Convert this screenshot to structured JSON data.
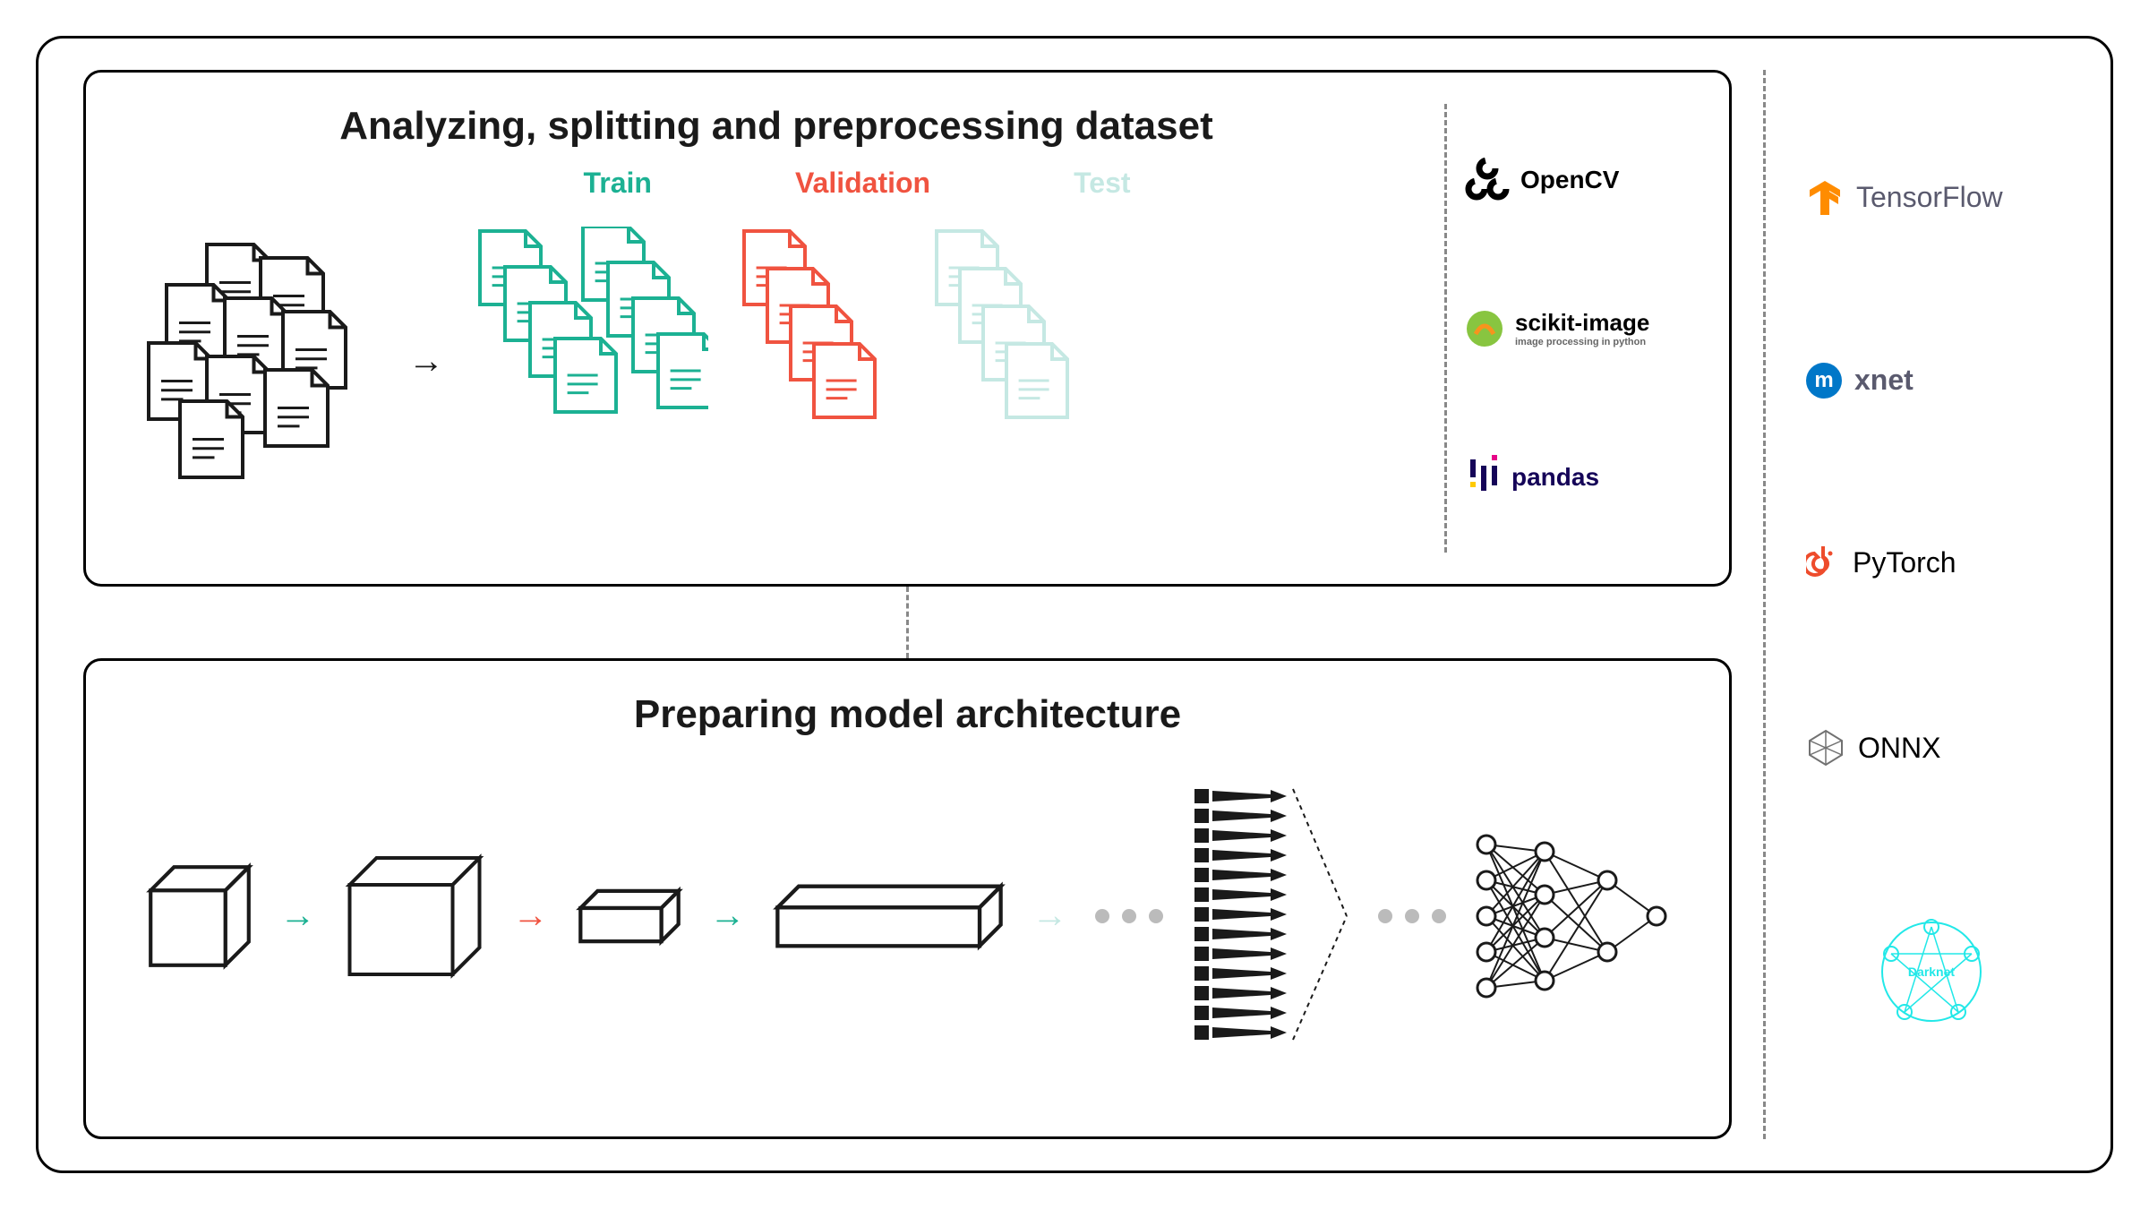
{
  "top_panel": {
    "title": "Analyzing, splitting and preprocessing dataset",
    "splits": [
      {
        "label": "Train",
        "color": "#1cb193",
        "file_count": 8
      },
      {
        "label": "Validation",
        "color": "#f05340",
        "file_count": 4
      },
      {
        "label": "Test",
        "color": "#c5e8e3",
        "file_count": 4
      }
    ],
    "source_cluster": {
      "color": "#1a1a1a",
      "file_count": 9
    },
    "arrow_color": "#1a1a1a",
    "tools": [
      {
        "name": "OpenCV",
        "icon": "opencv",
        "color": "#000000"
      },
      {
        "name": "scikit-image",
        "subtitle": "image processing in python",
        "icon": "skimage",
        "color": "#f7941d"
      },
      {
        "name": "pandas",
        "icon": "pandas",
        "color": "#150458"
      }
    ]
  },
  "bottom_panel": {
    "title": "Preparing model architecture",
    "arrows": [
      "#1cb193",
      "#f05340",
      "#1cb193",
      "#c5e8e3"
    ],
    "tensor_stroke": "#1a1a1a",
    "tensor_fill": "#ffffff",
    "dot_color": "#bbbbbb",
    "nn_color": "#1a1a1a"
  },
  "frameworks": [
    {
      "name": "TensorFlow",
      "icon": "tf",
      "color": "#ff8c00",
      "text_color": "#5a5a6e"
    },
    {
      "name": "xnet",
      "prefix_badge": "m",
      "badge_bg": "#0077c8",
      "text_color": "#5a5a6e"
    },
    {
      "name": "PyTorch",
      "icon": "pytorch",
      "color": "#ee4c2c",
      "text_color": "#1a1a1a"
    },
    {
      "name": "ONNX",
      "icon": "onnx",
      "color": "#717171",
      "text_color": "#1a1a1a"
    },
    {
      "name": "Darknet",
      "icon": "darknet",
      "color": "#22e8e8",
      "text_color": "#22e8e8"
    }
  ],
  "styling": {
    "border_color": "#000000",
    "border_radius_outer": 30,
    "border_radius_inner": 20,
    "background": "#ffffff",
    "title_fontsize": 44,
    "label_fontsize": 32,
    "dash_color": "#888888"
  }
}
